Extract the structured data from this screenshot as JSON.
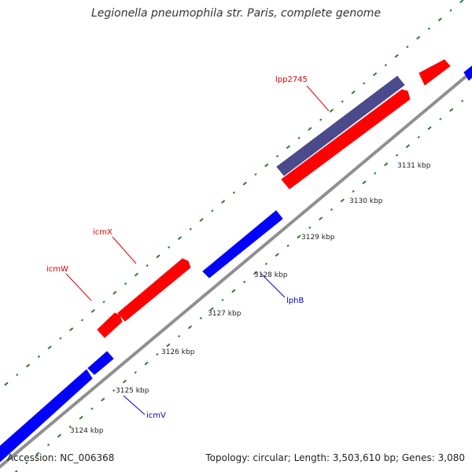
{
  "title": "Legionella pneumophila str. Paris, complete genome",
  "footer": {
    "accession": "Accession: NC_006368",
    "summary": "Topology: circular; Length: 3,503,610 bp; Genes: 3,080"
  },
  "colors": {
    "backbone": "#8f8f8f",
    "forward_gene": "#ff0000",
    "reverse_gene": "#0000ff",
    "highlight_gene": "#4a4a8c",
    "tick_marks": "#2e7d32",
    "gene_label_forward": "#e00000",
    "gene_label_reverse": "#0000cc",
    "text": "#222222"
  },
  "scale_labels": [
    "3124 kbp",
    "3125 kbp",
    "3126 kbp",
    "3127 kbp",
    "3128 kbp",
    "3129 kbp",
    "3130 kbp",
    "3131 kbp"
  ],
  "gene_labels": [
    {
      "text": "lpp2745",
      "strand": "forward"
    },
    {
      "text": "icmX",
      "strand": "forward"
    },
    {
      "text": "icmW",
      "strand": "forward"
    },
    {
      "text": "lphB",
      "strand": "reverse"
    },
    {
      "text": "icmV",
      "strand": "reverse"
    }
  ]
}
